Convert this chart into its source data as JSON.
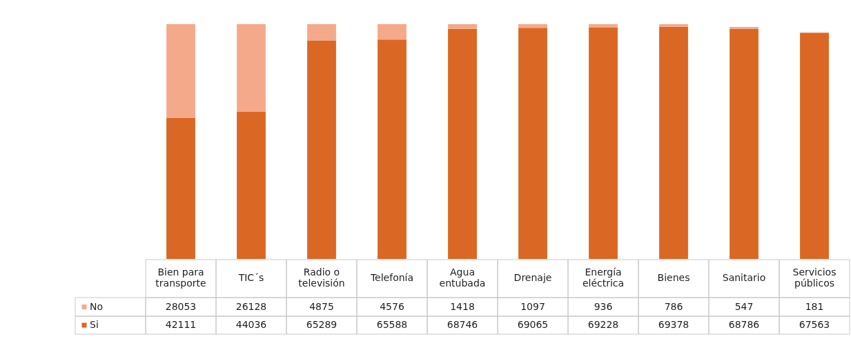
{
  "chart_data": {
    "type": "bar",
    "stacked": true,
    "data_labels": true,
    "legend": "bottom left",
    "categories": [
      "Bien para transporte",
      "TIC´s",
      "Radio o televisión",
      "Telefonía",
      "Agua entubada",
      "Drenaje",
      "Energía eléctrica",
      "Bienes",
      "Sanitario",
      "Servicios públicos"
    ],
    "series": [
      {
        "name": "Si",
        "color": "#da6724",
        "values": [
          42111,
          44036,
          65289,
          65588,
          68746,
          69065,
          69228,
          69378,
          68786,
          67563
        ]
      },
      {
        "name": "No",
        "color": "#f4a98a",
        "values": [
          28053,
          26128,
          4875,
          4576,
          1418,
          1097,
          936,
          786,
          547,
          181
        ]
      }
    ]
  }
}
